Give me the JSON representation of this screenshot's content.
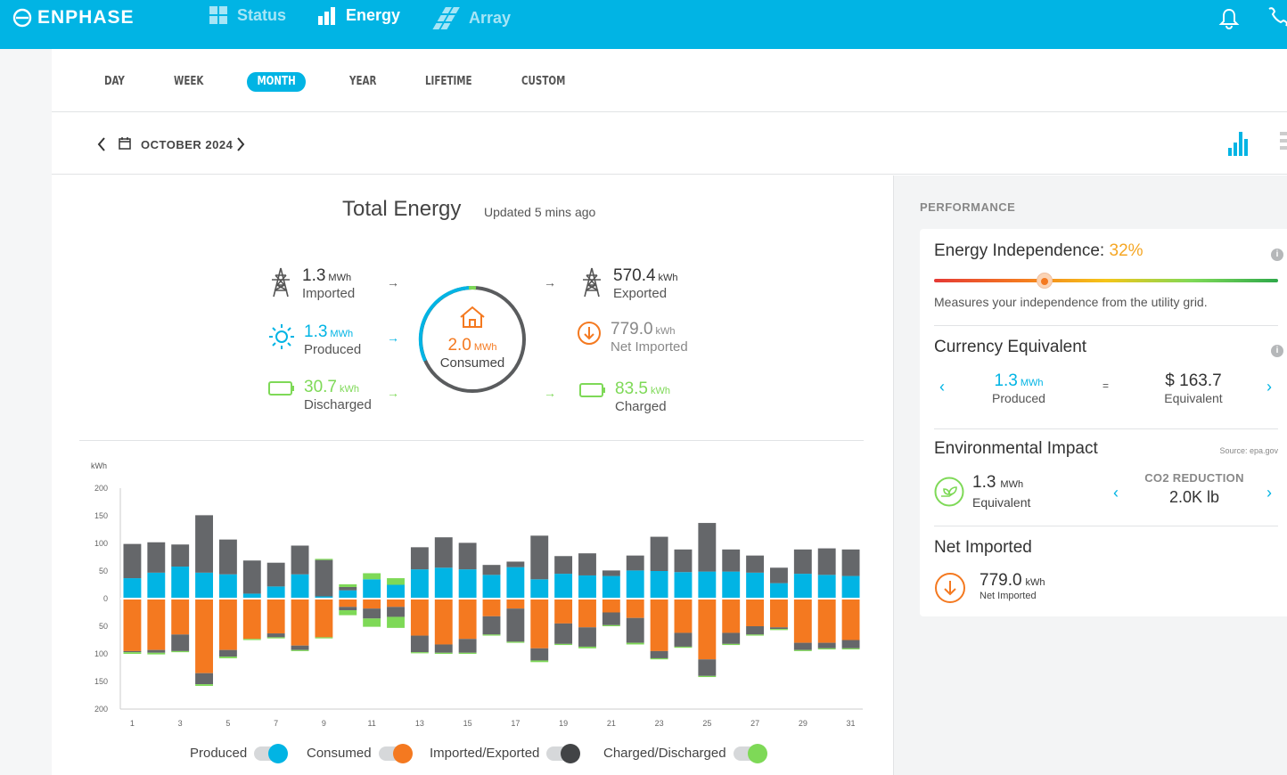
{
  "brand": {
    "name": "ENPHASE"
  },
  "nav": {
    "status": "Status",
    "energy": "Energy",
    "array": "Array"
  },
  "tabs": [
    "DAY",
    "WEEK",
    "MONTH",
    "YEAR",
    "LIFETIME",
    "CUSTOM"
  ],
  "active_tab": "MONTH",
  "date_label": "OCTOBER 2024",
  "header": {
    "title": "Total Energy",
    "updated": "Updated 5 mins ago"
  },
  "flows": {
    "imported": {
      "value": "1.3",
      "unit": "MWh",
      "label": "Imported"
    },
    "produced": {
      "value": "1.3",
      "unit": "MWh",
      "label": "Produced"
    },
    "discharged": {
      "value": "30.7",
      "unit": "kWh",
      "label": "Discharged"
    },
    "consumed": {
      "value": "2.0",
      "unit": "MWh",
      "label": "Consumed"
    },
    "exported": {
      "value": "570.4",
      "unit": "kWh",
      "label": "Exported"
    },
    "net_imported": {
      "value": "779.0",
      "unit": "kWh",
      "label": "Net Imported"
    },
    "charged": {
      "value": "83.5",
      "unit": "kWh",
      "label": "Charged"
    }
  },
  "arrows": {
    "right": "→"
  },
  "legend": {
    "produced": "Produced",
    "consumed": "Consumed",
    "imported_exported": "Imported/Exported",
    "charged_discharged": "Charged/Discharged"
  },
  "colors": {
    "produced": "#01b4e4",
    "consumed": "#f47920",
    "grid": "#65676a",
    "battery": "#7ed957",
    "accent": "#01b4e4"
  },
  "performance": {
    "heading": "PERFORMANCE",
    "independence": {
      "label": "Energy Independence:",
      "percent": "32%",
      "level": 0.32,
      "desc": "Measures your independence from the utility grid."
    },
    "currency": {
      "title": "Currency Equivalent",
      "value": "1.3",
      "unit": "MWh",
      "sub": "Produced",
      "equals": "=",
      "amount": "$ 163.7",
      "amount_sub": "Equivalent"
    },
    "environment": {
      "title": "Environmental Impact",
      "source": "Source: epa.gov",
      "value": "1.3",
      "unit": "MWh",
      "sub": "Equivalent",
      "co2_label": "CO2 REDUCTION",
      "co2_value": "2.0K lb"
    },
    "net": {
      "title": "Net Imported",
      "value": "779.0",
      "unit": "kWh",
      "sub": "Net Imported"
    }
  },
  "chart_data": {
    "type": "bar",
    "ylabel": "kWh",
    "ylim": [
      -200,
      200
    ],
    "yticks": [
      "200",
      "150",
      "100",
      "50",
      "0",
      "50",
      "100",
      "150",
      "200"
    ],
    "categories": [
      "1",
      "2",
      "3",
      "4",
      "5",
      "6",
      "7",
      "8",
      "9",
      "10",
      "11",
      "12",
      "13",
      "14",
      "15",
      "16",
      "17",
      "18",
      "19",
      "20",
      "21",
      "22",
      "23",
      "24",
      "25",
      "26",
      "27",
      "28",
      "29",
      "30",
      "31"
    ],
    "xtick_labels": [
      "1",
      "3",
      "5",
      "7",
      "9",
      "11",
      "13",
      "15",
      "17",
      "19",
      "21",
      "23",
      "25",
      "27",
      "29",
      "31"
    ],
    "series": [
      {
        "name": "Produced",
        "values": [
          37,
          47,
          58,
          47,
          44,
          9,
          22,
          44,
          4,
          15,
          35,
          25,
          53,
          56,
          53,
          43,
          57,
          35,
          45,
          42,
          41,
          51,
          50,
          48,
          49,
          49,
          47,
          28,
          45,
          43,
          41
        ]
      },
      {
        "name": "Imported/Exported",
        "values": [
          62,
          55,
          40,
          104,
          63,
          60,
          43,
          52,
          66,
          6,
          0,
          0,
          40,
          55,
          48,
          18,
          10,
          79,
          32,
          40,
          10,
          27,
          62,
          41,
          88,
          40,
          31,
          28,
          44,
          48,
          48
        ]
      },
      {
        "name": "Charged/Discharged",
        "values": [
          0,
          0,
          0,
          0,
          0,
          0,
          0,
          0,
          2,
          5,
          11,
          12,
          0,
          0,
          0,
          0,
          0,
          0,
          0,
          0,
          0,
          0,
          0,
          0,
          0,
          0,
          0,
          0,
          0,
          0,
          0
        ]
      },
      {
        "name": "Consumed",
        "values": [
          -95,
          -93,
          -65,
          -135,
          -93,
          -73,
          -63,
          -85,
          -70,
          -15,
          -18,
          -15,
          -67,
          -83,
          -73,
          -32,
          -18,
          -90,
          -45,
          -52,
          -25,
          -35,
          -95,
          -62,
          -110,
          -62,
          -50,
          -52,
          -80,
          -80,
          -75
        ]
      },
      {
        "name": "Imported/Exported",
        "values": [
          -2,
          -5,
          -30,
          -20,
          -12,
          0,
          -7,
          -8,
          0,
          -6,
          -18,
          -18,
          -30,
          -15,
          -25,
          -33,
          -60,
          -22,
          -37,
          -35,
          -23,
          -45,
          -13,
          -25,
          -30,
          -20,
          -15,
          -3,
          -13,
          -10,
          -15
        ]
      },
      {
        "name": "Charged/Discharged",
        "values": [
          -3,
          -3,
          -2,
          -3,
          -3,
          -2,
          -2,
          -2,
          -2,
          -9,
          -15,
          -20,
          -2,
          -2,
          -2,
          -2,
          -2,
          -3,
          -2,
          -3,
          -2,
          -3,
          -2,
          -2,
          -2,
          -2,
          -2,
          -2,
          -2,
          -2,
          -2
        ]
      }
    ]
  }
}
